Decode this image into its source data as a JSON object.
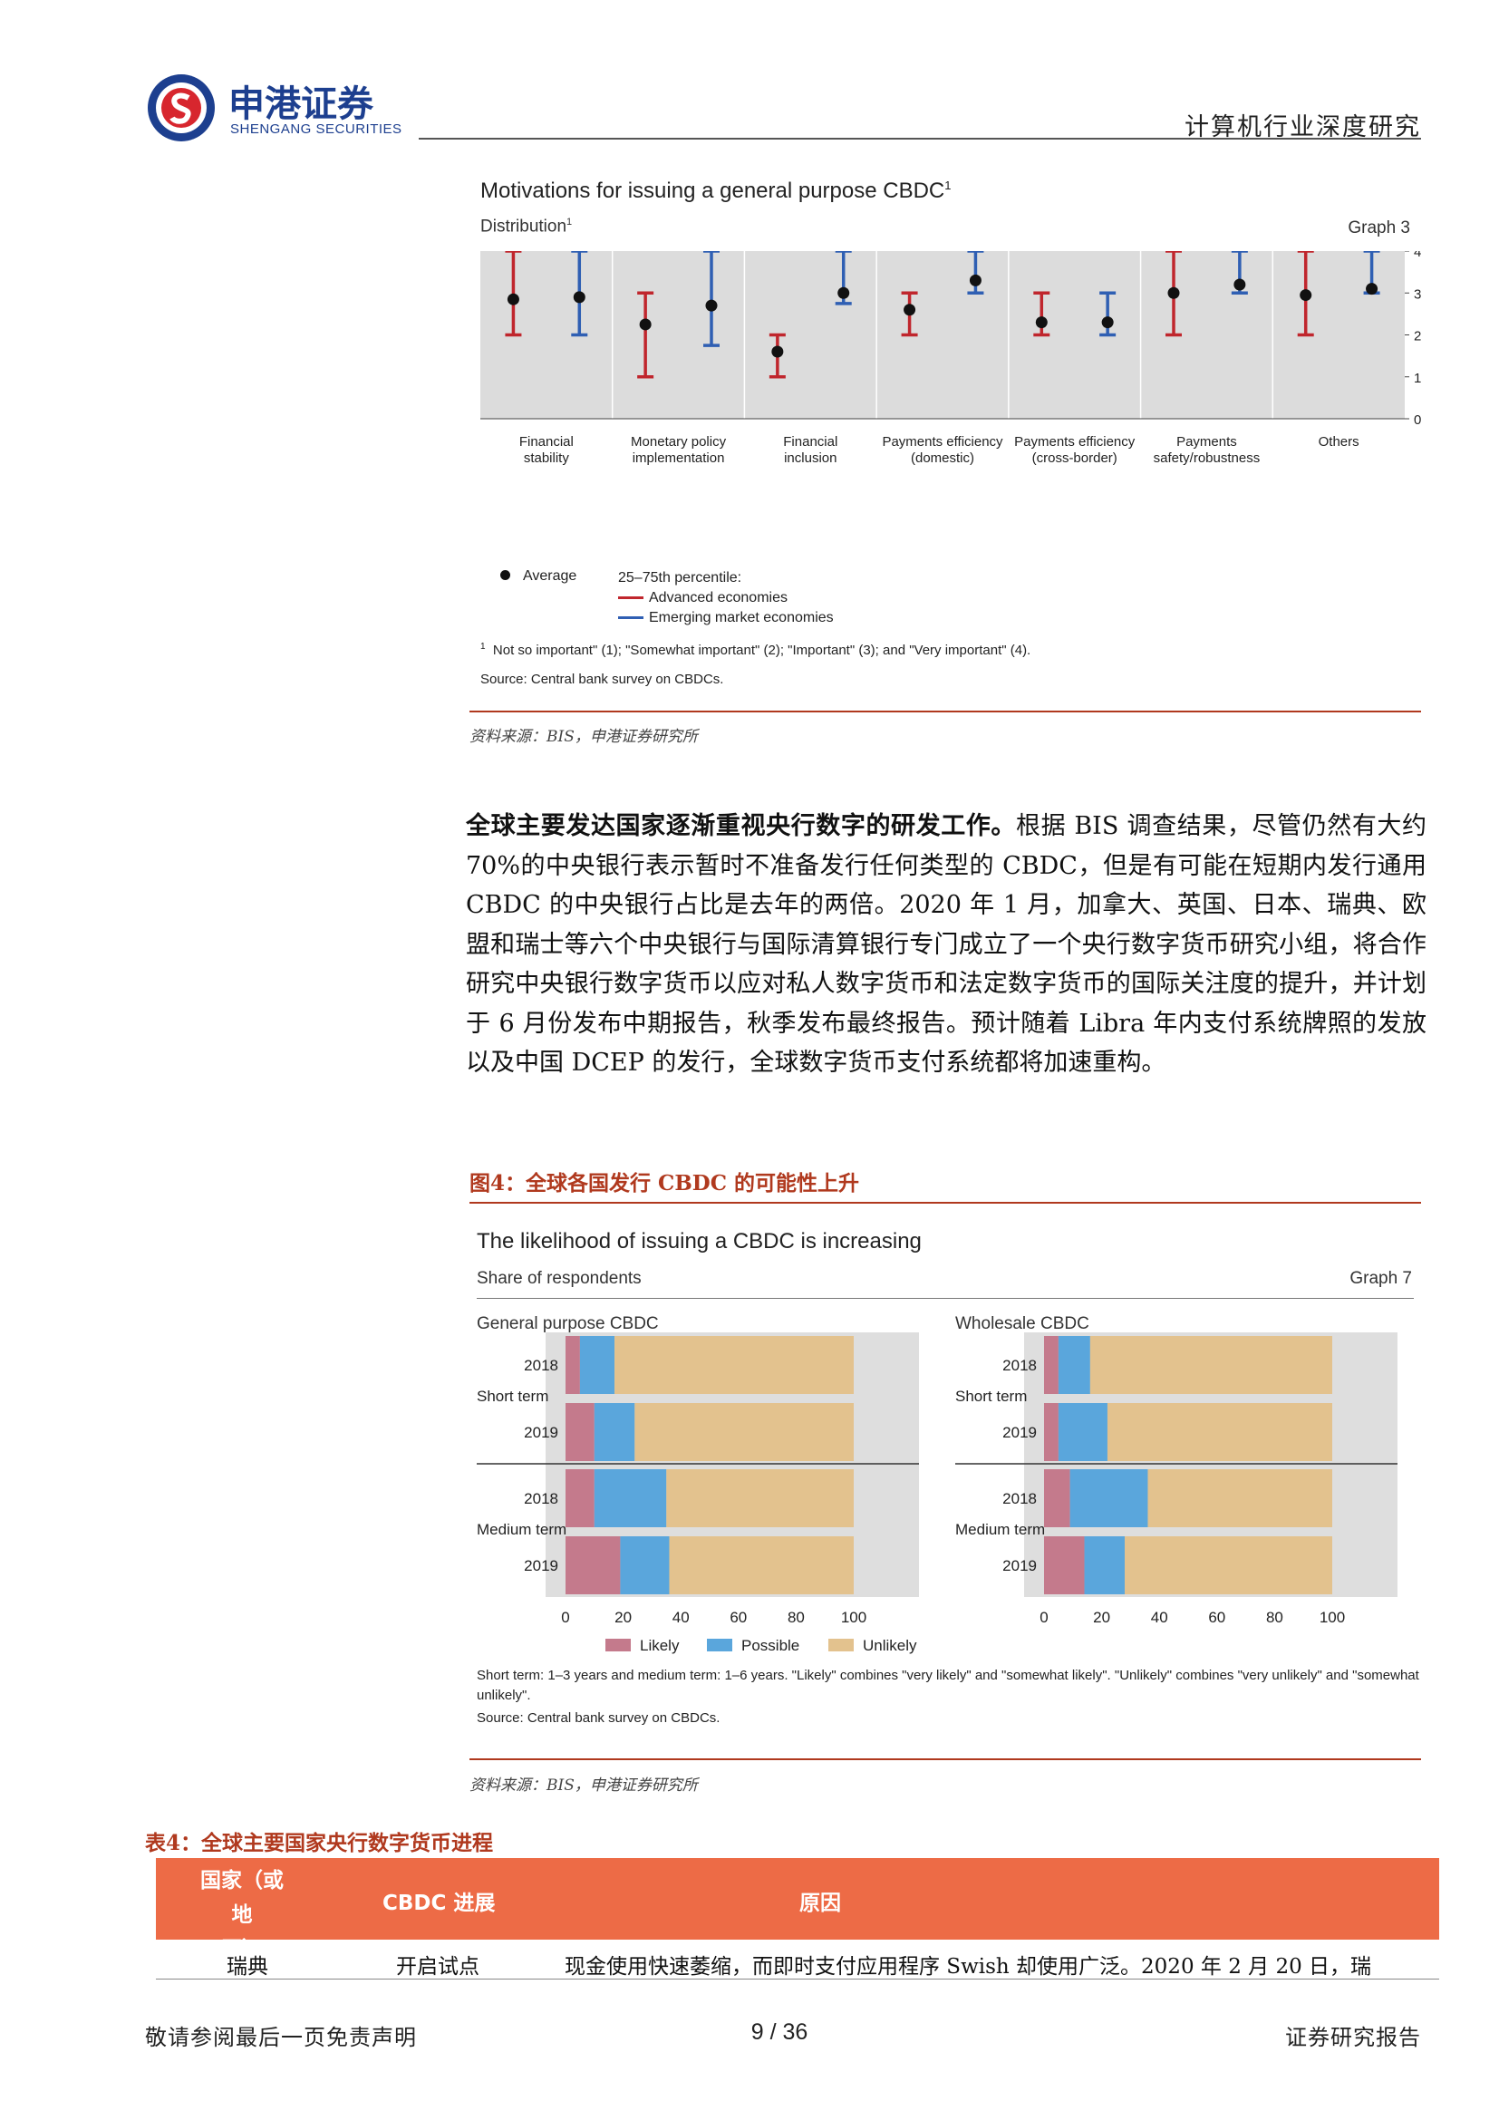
{
  "header": {
    "brand_cn": "申港证券",
    "brand_en": "SHENGANG SECURITIES",
    "report_type": "计算机行业深度研究"
  },
  "figure3": {
    "title": "Motivations for issuing a general purpose CBDC",
    "title_sup": "1",
    "subtitle": "Distribution",
    "subtitle_sup": "1",
    "graph_label": "Graph 3",
    "legend_average": "Average",
    "legend_percentile": "25–75th percentile:",
    "legend_ae": "Advanced economies",
    "legend_eme": "Emerging market economies",
    "footnote_num": "1",
    "footnote": "Not so important\" (1); \"Somewhat important\" (2); \"Important\" (3); and \"Very important\" (4).",
    "source": "Source: Central bank survey on CBDCs.",
    "note": "资料来源：BIS，申港证券研究所",
    "chart_data": {
      "type": "errorbar",
      "ylim": [
        0,
        4
      ],
      "yticks": [
        "0",
        "1",
        "2",
        "3",
        "4"
      ],
      "categories": [
        [
          "Financial",
          "stability"
        ],
        [
          "Monetary policy",
          "implementation"
        ],
        [
          "Financial",
          "inclusion"
        ],
        [
          "Payments efficiency",
          "(domestic)"
        ],
        [
          "Payments efficiency",
          "(cross-border)"
        ],
        [
          "Payments",
          "safety/robustness"
        ],
        [
          "Others",
          ""
        ]
      ],
      "series": [
        {
          "name": "Advanced economies",
          "color": "#c0262d",
          "low": [
            2,
            1,
            1,
            2,
            2,
            2,
            2
          ],
          "high": [
            4,
            3,
            2,
            3,
            3,
            4,
            4
          ],
          "avg": [
            2.85,
            2.25,
            1.6,
            2.6,
            2.3,
            3.0,
            2.95
          ]
        },
        {
          "name": "Emerging market economies",
          "color": "#2f5fb3",
          "low": [
            2,
            1.75,
            2.75,
            3,
            2,
            3,
            3
          ],
          "high": [
            4,
            4,
            4,
            4,
            3,
            4,
            4
          ],
          "avg": [
            2.9,
            2.7,
            3.0,
            3.3,
            2.3,
            3.2,
            3.1
          ]
        }
      ]
    }
  },
  "paragraph": {
    "lead": "全球主要发达国家逐渐重视央行数字的研发工作。",
    "body": "根据 BIS 调查结果，尽管仍然有大约 70%的中央银行表示暂时不准备发行任何类型的 CBDC，但是有可能在短期内发行通用 CBDC 的中央银行占比是去年的两倍。2020 年 1 月，加拿大、英国、日本、瑞典、欧盟和瑞士等六个中央银行与国际清算银行专门成立了一个央行数字货币研究小组，将合作研究中央银行数字货币以应对私人数字货币和法定数字货币的国际关注度的提升，并计划于 6 月份发布中期报告，秋季发布最终报告。预计随着 Libra 年内支付系统牌照的发放以及中国 DCEP 的发行，全球数字货币支付系统都将加速重构。"
  },
  "figure4": {
    "caption": "图4：全球各国发行 CBDC 的可能性上升",
    "title": "The likelihood of issuing a CBDC is increasing",
    "subtitle": "Share of respondents",
    "graph_label": "Graph 7",
    "panel_left": "General purpose CBDC",
    "panel_right": "Wholesale CBDC",
    "group_short": "Short term",
    "group_medium": "Medium term",
    "xticks": [
      "0",
      "20",
      "40",
      "60",
      "80",
      "100"
    ],
    "legend": [
      "Likely",
      "Possible",
      "Unlikely"
    ],
    "note1": "Short term: 1–3 years and medium term: 1–6 years. \"Likely\" combines \"very likely\" and \"somewhat likely\". \"Unlikely\" combines \"very unlikely\" and \"somewhat unlikely\".",
    "source": "Source: Central bank survey on CBDCs.",
    "note": "资料来源：BIS，申港证券研究所",
    "chart_data": {
      "type": "bar",
      "orientation": "horizontal-stacked",
      "xlim": [
        0,
        100
      ],
      "colors": {
        "Likely": "#c47a8c",
        "Possible": "#5aa6dc",
        "Unlikely": "#e3c28e"
      },
      "panels": [
        {
          "name": "General purpose CBDC",
          "bars": [
            {
              "group": "Short term",
              "year": "2018",
              "likely": 5,
              "possible": 12,
              "unlikely": 83
            },
            {
              "group": "Short term",
              "year": "2019",
              "likely": 10,
              "possible": 14,
              "unlikely": 76
            },
            {
              "group": "Medium term",
              "year": "2018",
              "likely": 10,
              "possible": 25,
              "unlikely": 65
            },
            {
              "group": "Medium term",
              "year": "2019",
              "likely": 19,
              "possible": 17,
              "unlikely": 64
            }
          ]
        },
        {
          "name": "Wholesale CBDC",
          "bars": [
            {
              "group": "Short term",
              "year": "2018",
              "likely": 5,
              "possible": 11,
              "unlikely": 84
            },
            {
              "group": "Short term",
              "year": "2019",
              "likely": 5,
              "possible": 17,
              "unlikely": 78
            },
            {
              "group": "Medium term",
              "year": "2018",
              "likely": 9,
              "possible": 27,
              "unlikely": 64
            },
            {
              "group": "Medium term",
              "year": "2019",
              "likely": 14,
              "possible": 14,
              "unlikely": 72
            }
          ]
        }
      ]
    }
  },
  "table4": {
    "caption": "表4：全球主要国家央行数字货币进程",
    "headers": [
      "国家（或地区）",
      "CBDC 进展",
      "原因"
    ],
    "header_col1_line1": "国家（或地",
    "header_col1_line2": "区）",
    "rows": [
      {
        "country": "瑞典",
        "progress": "开启试点",
        "reason": "现金使用快速萎缩，而即时支付应用程序 Swish 却使用广泛。2020 年 2 月 20 日，瑞"
      }
    ]
  },
  "footer": {
    "left": "敬请参阅最后一页免责声明",
    "page": "9 / 36",
    "right": "证券研究报告"
  }
}
